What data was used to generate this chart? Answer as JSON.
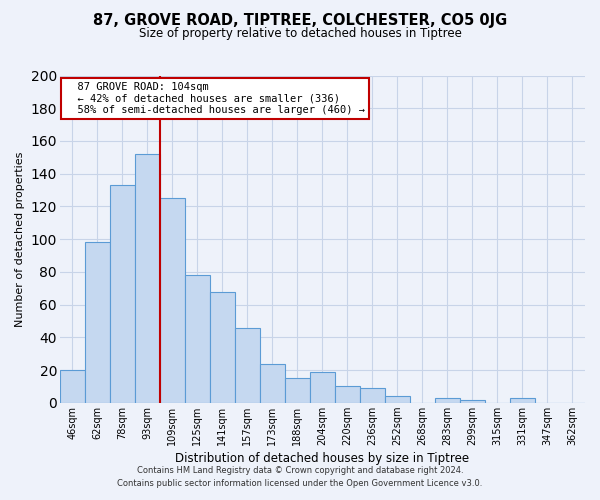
{
  "title": "87, GROVE ROAD, TIPTREE, COLCHESTER, CO5 0JG",
  "subtitle": "Size of property relative to detached houses in Tiptree",
  "xlabel": "Distribution of detached houses by size in Tiptree",
  "ylabel": "Number of detached properties",
  "bar_labels": [
    "46sqm",
    "62sqm",
    "78sqm",
    "93sqm",
    "109sqm",
    "125sqm",
    "141sqm",
    "157sqm",
    "173sqm",
    "188sqm",
    "204sqm",
    "220sqm",
    "236sqm",
    "252sqm",
    "268sqm",
    "283sqm",
    "299sqm",
    "315sqm",
    "331sqm",
    "347sqm",
    "362sqm"
  ],
  "bar_values": [
    20,
    98,
    133,
    152,
    125,
    78,
    68,
    46,
    24,
    15,
    19,
    10,
    9,
    4,
    0,
    3,
    2,
    0,
    3,
    0,
    0
  ],
  "bar_color": "#c5d8f0",
  "bar_edge_color": "#5b9bd5",
  "vline_color": "#c00000",
  "ylim": [
    0,
    200
  ],
  "yticks": [
    0,
    20,
    40,
    60,
    80,
    100,
    120,
    140,
    160,
    180,
    200
  ],
  "annotation_title": "87 GROVE ROAD: 104sqm",
  "annotation_line1": "← 42% of detached houses are smaller (336)",
  "annotation_line2": "58% of semi-detached houses are larger (460) →",
  "annotation_box_color": "#ffffff",
  "annotation_box_edge": "#c00000",
  "footer1": "Contains HM Land Registry data © Crown copyright and database right 2024.",
  "footer2": "Contains public sector information licensed under the Open Government Licence v3.0.",
  "bg_color": "#eef2fa",
  "grid_color": "#c8d4e8"
}
